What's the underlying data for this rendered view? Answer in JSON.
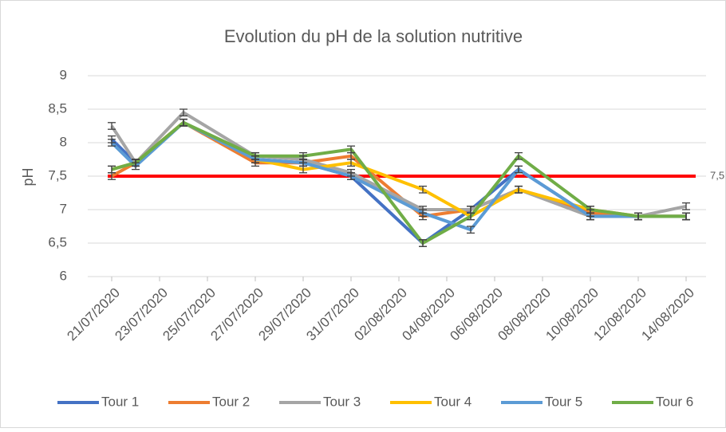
{
  "chart_data": {
    "type": "line",
    "title": "Evolution du pH de la solution nutritive",
    "y_label": "pH",
    "x": [
      "21/07/2020",
      "22/07/2020",
      "24/07/2020",
      "27/07/2020",
      "29/07/2020",
      "31/07/2020",
      "03/08/2020",
      "05/08/2020",
      "07/08/2020",
      "10/08/2020",
      "12/08/2020",
      "14/08/2020"
    ],
    "xlim": [
      "21/07/2020",
      "14/08/2020"
    ],
    "xticks": [
      "21/07/2020",
      "23/07/2020",
      "25/07/2020",
      "27/07/2020",
      "29/07/2020",
      "31/07/2020",
      "02/08/2020",
      "04/08/2020",
      "06/08/2020",
      "08/08/2020",
      "10/08/2020",
      "12/08/2020",
      "14/08/2020"
    ],
    "ylim": [
      6,
      9
    ],
    "yticks": [
      6,
      {
        "value": 6.5,
        "label": "6,5"
      },
      7,
      {
        "value": 7.5,
        "label": "7,5"
      },
      8,
      {
        "value": 8.5,
        "label": "8,5"
      },
      9
    ],
    "grid": true,
    "legend": "bottom",
    "error": 0.05,
    "threshold": {
      "value": 7.5,
      "label": "7,5",
      "color": "#FF0000"
    },
    "series": [
      {
        "name": "Tour 1",
        "color": "#4472C4",
        "values": [
          8.05,
          7.7,
          8.3,
          7.75,
          7.7,
          7.5,
          6.5,
          7.0,
          7.6,
          6.9,
          6.9,
          6.9
        ]
      },
      {
        "name": "Tour 2",
        "color": "#ED7D31",
        "values": [
          7.5,
          7.7,
          8.3,
          7.7,
          7.7,
          7.8,
          6.9,
          7.0,
          7.3,
          6.95,
          6.9,
          6.9
        ]
      },
      {
        "name": "Tour 3",
        "color": "#A5A5A5",
        "values": [
          8.25,
          7.7,
          8.45,
          7.8,
          7.75,
          7.55,
          7.0,
          7.0,
          7.3,
          6.9,
          6.9,
          7.05
        ]
      },
      {
        "name": "Tour 4",
        "color": "#FFC000",
        "values": [
          7.6,
          7.7,
          8.3,
          7.75,
          7.6,
          7.7,
          7.3,
          6.9,
          7.3,
          7.0,
          6.9,
          6.9
        ]
      },
      {
        "name": "Tour 5",
        "color": "#5B9BD5",
        "values": [
          8.0,
          7.65,
          8.3,
          7.75,
          7.7,
          7.5,
          6.95,
          6.7,
          7.6,
          6.9,
          6.9,
          6.9
        ]
      },
      {
        "name": "Tour 6",
        "color": "#70AD47",
        "values": [
          7.6,
          7.7,
          8.3,
          7.8,
          7.8,
          7.9,
          6.5,
          6.9,
          7.8,
          7.0,
          6.9,
          6.9
        ]
      }
    ]
  }
}
